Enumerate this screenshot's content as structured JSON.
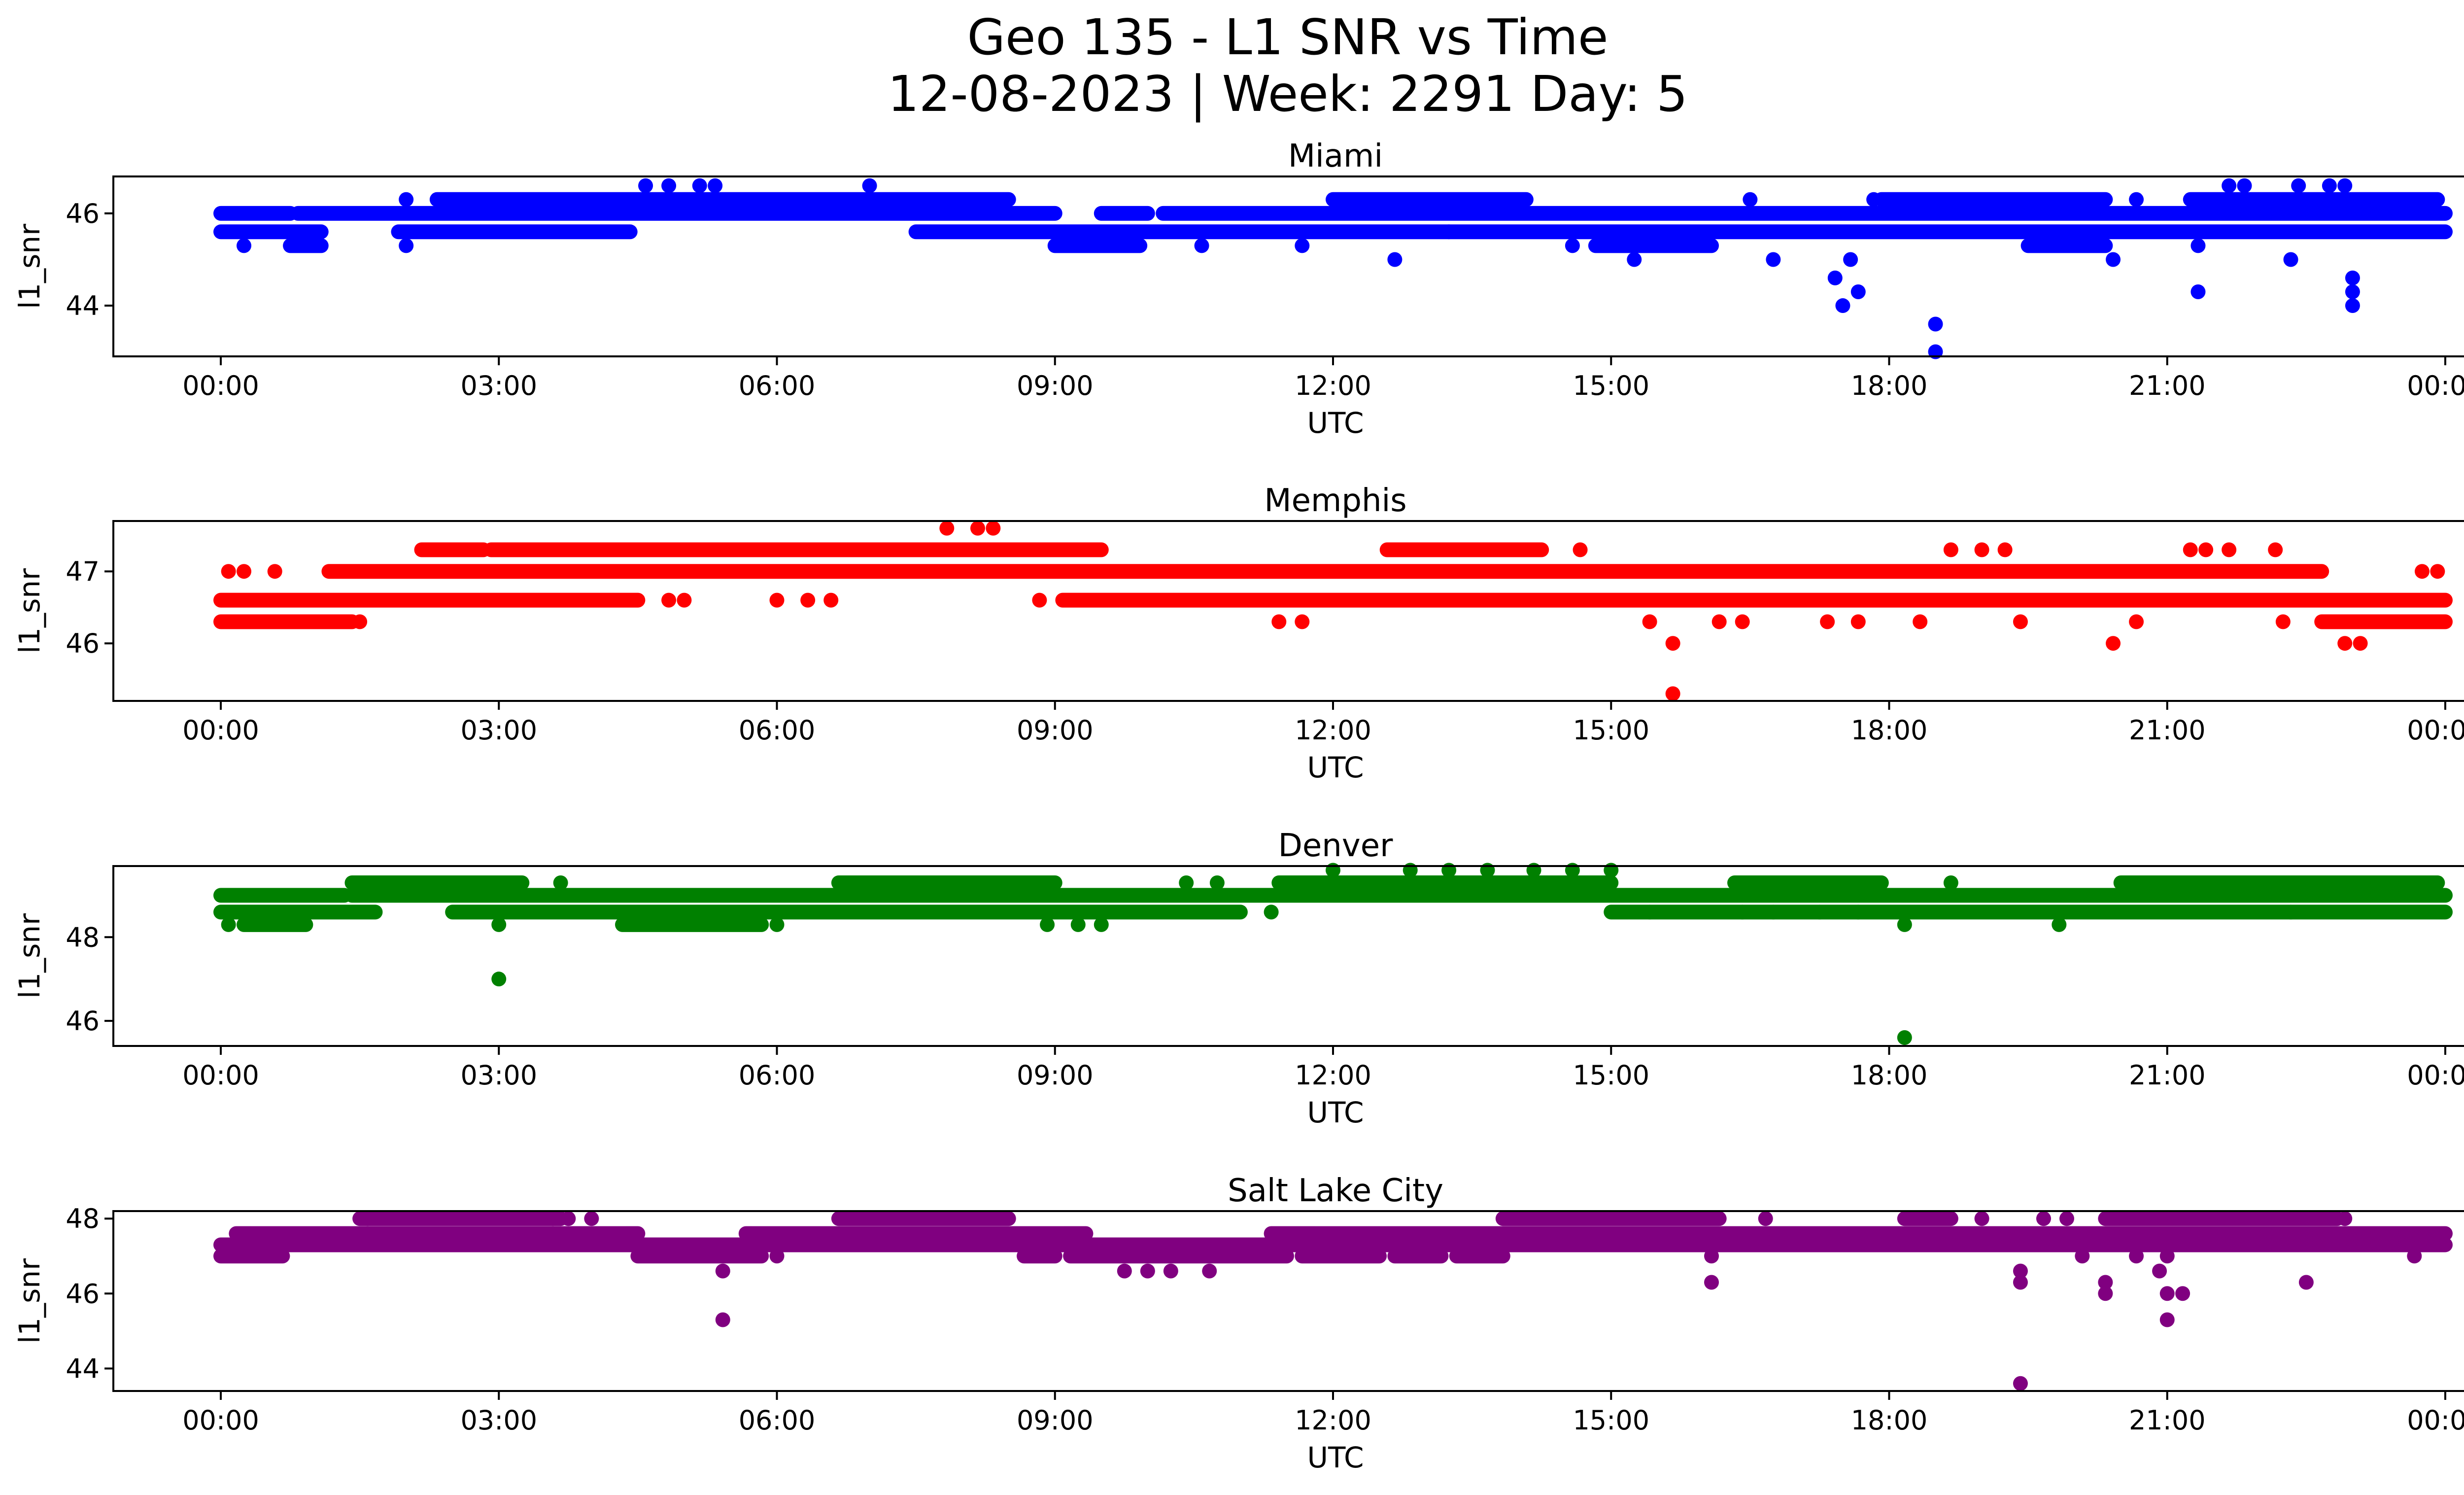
{
  "figure": {
    "title_line1": "Geo 135 - L1 SNR vs Time",
    "title_line2": "12-08-2023 | Week: 2291 Day: 5"
  },
  "chart_data": [
    {
      "type": "scatter",
      "title": "Miami",
      "xlabel": "UTC",
      "ylabel": "l1_snr",
      "color": "#0000ff",
      "xlim": [
        "00:00",
        "24:00"
      ],
      "xticks": [
        "00:00",
        "03:00",
        "06:00",
        "09:00",
        "12:00",
        "15:00",
        "18:00",
        "21:00",
        "00:00"
      ],
      "ylim": [
        42.9,
        46.8
      ],
      "yticks": [
        44,
        46
      ],
      "bands": [
        {
          "y": 45.6,
          "segments": [
            [
              "00:00",
              "01:05"
            ],
            [
              "01:55",
              "04:25"
            ],
            [
              "07:30",
              "24:00"
            ]
          ]
        },
        {
          "y": 46.0,
          "segments": [
            [
              "00:00",
              "00:45"
            ],
            [
              "00:50",
              "09:00"
            ],
            [
              "09:30",
              "10:00"
            ],
            [
              "10:10",
              "24:00"
            ]
          ]
        },
        {
          "y": 46.3,
          "segments": [
            [
              "02:20",
              "08:30"
            ],
            [
              "12:00",
              "14:05"
            ],
            [
              "17:55",
              "20:20"
            ],
            [
              "21:15",
              "23:55"
            ]
          ]
        },
        {
          "y": 45.3,
          "segments": [
            [
              "00:45",
              "01:05"
            ],
            [
              "09:00",
              "09:55"
            ],
            [
              "14:50",
              "16:05"
            ],
            [
              "19:30",
              "20:20"
            ]
          ]
        }
      ],
      "points": [
        {
          "x": "00:15",
          "y": 45.3
        },
        {
          "x": "02:00",
          "y": 45.3
        },
        {
          "x": "02:00",
          "y": 46.3
        },
        {
          "x": "04:35",
          "y": 46.6
        },
        {
          "x": "04:50",
          "y": 46.6
        },
        {
          "x": "05:10",
          "y": 46.6
        },
        {
          "x": "05:20",
          "y": 46.6
        },
        {
          "x": "07:00",
          "y": 46.6
        },
        {
          "x": "10:35",
          "y": 45.3
        },
        {
          "x": "11:40",
          "y": 45.3
        },
        {
          "x": "12:40",
          "y": 45.0
        },
        {
          "x": "13:15",
          "y": 45.6
        },
        {
          "x": "14:35",
          "y": 45.3
        },
        {
          "x": "15:15",
          "y": 45.0
        },
        {
          "x": "16:30",
          "y": 46.3
        },
        {
          "x": "16:45",
          "y": 45.0
        },
        {
          "x": "17:25",
          "y": 44.6
        },
        {
          "x": "17:30",
          "y": 44.0
        },
        {
          "x": "17:35",
          "y": 45.0
        },
        {
          "x": "17:40",
          "y": 44.3
        },
        {
          "x": "17:50",
          "y": 46.3
        },
        {
          "x": "18:30",
          "y": 43.6
        },
        {
          "x": "18:30",
          "y": 43.0
        },
        {
          "x": "20:25",
          "y": 45.0
        },
        {
          "x": "20:40",
          "y": 46.3
        },
        {
          "x": "21:20",
          "y": 44.3
        },
        {
          "x": "21:20",
          "y": 45.3
        },
        {
          "x": "21:40",
          "y": 46.6
        },
        {
          "x": "21:50",
          "y": 46.6
        },
        {
          "x": "22:20",
          "y": 45.0
        },
        {
          "x": "22:25",
          "y": 46.6
        },
        {
          "x": "22:45",
          "y": 46.6
        },
        {
          "x": "22:55",
          "y": 46.6
        },
        {
          "x": "23:00",
          "y": 44.0
        },
        {
          "x": "23:00",
          "y": 44.3
        },
        {
          "x": "23:00",
          "y": 44.6
        }
      ]
    },
    {
      "type": "scatter",
      "title": "Memphis",
      "xlabel": "UTC",
      "ylabel": "l1_snr",
      "color": "#ff0000",
      "xlim": [
        "00:00",
        "24:00"
      ],
      "xticks": [
        "00:00",
        "03:00",
        "06:00",
        "09:00",
        "12:00",
        "15:00",
        "18:00",
        "21:00",
        "00:00"
      ],
      "ylim": [
        45.2,
        47.7
      ],
      "yticks": [
        46,
        47
      ],
      "bands": [
        {
          "y": 46.6,
          "segments": [
            [
              "00:00",
              "04:30"
            ],
            [
              "09:05",
              "24:00"
            ]
          ]
        },
        {
          "y": 47.0,
          "segments": [
            [
              "01:10",
              "22:40"
            ]
          ]
        },
        {
          "y": 47.3,
          "segments": [
            [
              "02:10",
              "02:50"
            ],
            [
              "02:55",
              "09:30"
            ],
            [
              "12:35",
              "14:15"
            ]
          ]
        },
        {
          "y": 46.3,
          "segments": [
            [
              "00:00",
              "01:25"
            ],
            [
              "22:40",
              "24:00"
            ]
          ]
        }
      ],
      "points": [
        {
          "x": "00:05",
          "y": 47.0
        },
        {
          "x": "00:15",
          "y": 47.0
        },
        {
          "x": "00:35",
          "y": 47.0
        },
        {
          "x": "01:30",
          "y": 46.3
        },
        {
          "x": "04:50",
          "y": 46.6
        },
        {
          "x": "05:00",
          "y": 46.6
        },
        {
          "x": "06:00",
          "y": 46.6
        },
        {
          "x": "06:20",
          "y": 46.6
        },
        {
          "x": "06:35",
          "y": 46.6
        },
        {
          "x": "07:50",
          "y": 47.6
        },
        {
          "x": "08:10",
          "y": 47.6
        },
        {
          "x": "08:20",
          "y": 47.6
        },
        {
          "x": "08:50",
          "y": 46.6
        },
        {
          "x": "11:25",
          "y": 46.3
        },
        {
          "x": "11:40",
          "y": 46.3
        },
        {
          "x": "14:40",
          "y": 47.3
        },
        {
          "x": "15:25",
          "y": 46.3
        },
        {
          "x": "15:40",
          "y": 46.0
        },
        {
          "x": "15:40",
          "y": 45.3
        },
        {
          "x": "16:10",
          "y": 46.3
        },
        {
          "x": "16:25",
          "y": 46.3
        },
        {
          "x": "17:20",
          "y": 46.3
        },
        {
          "x": "17:40",
          "y": 46.3
        },
        {
          "x": "18:20",
          "y": 46.3
        },
        {
          "x": "18:40",
          "y": 47.3
        },
        {
          "x": "19:00",
          "y": 47.3
        },
        {
          "x": "19:15",
          "y": 47.3
        },
        {
          "x": "19:25",
          "y": 46.3
        },
        {
          "x": "20:25",
          "y": 46.0
        },
        {
          "x": "20:40",
          "y": 46.3
        },
        {
          "x": "21:15",
          "y": 47.3
        },
        {
          "x": "21:25",
          "y": 47.3
        },
        {
          "x": "21:40",
          "y": 47.3
        },
        {
          "x": "22:10",
          "y": 47.3
        },
        {
          "x": "22:15",
          "y": 46.3
        },
        {
          "x": "22:55",
          "y": 46.0
        },
        {
          "x": "23:05",
          "y": 46.0
        },
        {
          "x": "23:45",
          "y": 47.0
        },
        {
          "x": "23:55",
          "y": 47.0
        }
      ]
    },
    {
      "type": "scatter",
      "title": "Denver",
      "xlabel": "UTC",
      "ylabel": "l1_snr",
      "color": "#008000",
      "xlim": [
        "00:00",
        "24:00"
      ],
      "xticks": [
        "00:00",
        "03:00",
        "06:00",
        "09:00",
        "12:00",
        "15:00",
        "18:00",
        "21:00",
        "00:00"
      ],
      "ylim": [
        45.4,
        49.7
      ],
      "yticks": [
        46,
        48
      ],
      "bands": [
        {
          "y": 48.6,
          "segments": [
            [
              "00:00",
              "01:40"
            ],
            [
              "02:30",
              "11:00"
            ],
            [
              "15:00",
              "24:00"
            ]
          ]
        },
        {
          "y": 49.0,
          "segments": [
            [
              "00:00",
              "01:20"
            ],
            [
              "01:25",
              "24:00"
            ]
          ]
        },
        {
          "y": 49.3,
          "segments": [
            [
              "01:25",
              "03:15"
            ],
            [
              "06:40",
              "09:00"
            ],
            [
              "11:25",
              "15:00"
            ],
            [
              "16:20",
              "17:55"
            ],
            [
              "20:30",
              "23:55"
            ]
          ]
        },
        {
          "y": 48.3,
          "segments": [
            [
              "00:15",
              "00:55"
            ],
            [
              "04:20",
              "05:50"
            ]
          ]
        }
      ],
      "points": [
        {
          "x": "00:05",
          "y": 48.3
        },
        {
          "x": "03:00",
          "y": 47.0
        },
        {
          "x": "03:00",
          "y": 48.3
        },
        {
          "x": "03:40",
          "y": 49.3
        },
        {
          "x": "06:00",
          "y": 48.3
        },
        {
          "x": "08:55",
          "y": 48.3
        },
        {
          "x": "09:15",
          "y": 48.3
        },
        {
          "x": "09:30",
          "y": 48.3
        },
        {
          "x": "10:25",
          "y": 49.3
        },
        {
          "x": "10:45",
          "y": 49.3
        },
        {
          "x": "11:20",
          "y": 48.6
        },
        {
          "x": "12:00",
          "y": 49.6
        },
        {
          "x": "12:50",
          "y": 49.6
        },
        {
          "x": "13:15",
          "y": 49.6
        },
        {
          "x": "13:40",
          "y": 49.6
        },
        {
          "x": "14:10",
          "y": 49.6
        },
        {
          "x": "14:35",
          "y": 49.6
        },
        {
          "x": "15:00",
          "y": 49.6
        },
        {
          "x": "15:25",
          "y": 48.6
        },
        {
          "x": "16:25",
          "y": 48.6
        },
        {
          "x": "16:45",
          "y": 48.6
        },
        {
          "x": "17:15",
          "y": 48.6
        },
        {
          "x": "17:40",
          "y": 48.6
        },
        {
          "x": "18:10",
          "y": 48.3
        },
        {
          "x": "18:10",
          "y": 45.6
        },
        {
          "x": "18:40",
          "y": 49.3
        },
        {
          "x": "19:50",
          "y": 48.3
        },
        {
          "x": "22:20",
          "y": 48.6
        }
      ]
    },
    {
      "type": "scatter",
      "title": "Salt Lake City",
      "xlabel": "UTC",
      "ylabel": "l1_snr",
      "color": "#800080",
      "xlim": [
        "00:00",
        "24:00"
      ],
      "xticks": [
        "00:00",
        "03:00",
        "06:00",
        "09:00",
        "12:00",
        "15:00",
        "18:00",
        "21:00",
        "00:00"
      ],
      "ylim": [
        43.4,
        48.2
      ],
      "yticks": [
        44,
        46,
        48
      ],
      "bands": [
        {
          "y": 47.0,
          "segments": [
            [
              "00:00",
              "00:40"
            ],
            [
              "04:30",
              "05:50"
            ],
            [
              "08:40",
              "09:00"
            ],
            [
              "09:10",
              "11:30"
            ],
            [
              "11:40",
              "12:30"
            ],
            [
              "12:40",
              "13:10"
            ],
            [
              "13:20",
              "13:50"
            ]
          ]
        },
        {
          "y": 47.3,
          "segments": [
            [
              "00:00",
              "24:00"
            ]
          ]
        },
        {
          "y": 47.6,
          "segments": [
            [
              "00:10",
              "04:30"
            ],
            [
              "05:40",
              "09:20"
            ],
            [
              "11:20",
              "24:00"
            ]
          ]
        },
        {
          "y": 48.0,
          "segments": [
            [
              "01:30",
              "03:40"
            ],
            [
              "06:40",
              "08:30"
            ],
            [
              "13:50",
              "16:10"
            ],
            [
              "18:10",
              "18:40"
            ],
            [
              "20:20",
              "22:50"
            ]
          ]
        }
      ],
      "points": [
        {
          "x": "01:35",
          "y": 48.0
        },
        {
          "x": "02:40",
          "y": 47.3
        },
        {
          "x": "03:35",
          "y": 48.0
        },
        {
          "x": "03:45",
          "y": 48.0
        },
        {
          "x": "04:00",
          "y": 48.0
        },
        {
          "x": "05:25",
          "y": 46.6
        },
        {
          "x": "05:25",
          "y": 45.3
        },
        {
          "x": "06:00",
          "y": 47.0
        },
        {
          "x": "07:10",
          "y": 47.3
        },
        {
          "x": "09:45",
          "y": 46.6
        },
        {
          "x": "10:00",
          "y": 46.6
        },
        {
          "x": "10:15",
          "y": 46.6
        },
        {
          "x": "10:40",
          "y": 46.6
        },
        {
          "x": "16:05",
          "y": 46.3
        },
        {
          "x": "16:05",
          "y": 47.0
        },
        {
          "x": "16:40",
          "y": 48.0
        },
        {
          "x": "19:00",
          "y": 48.0
        },
        {
          "x": "19:25",
          "y": 46.6
        },
        {
          "x": "19:25",
          "y": 46.3
        },
        {
          "x": "19:25",
          "y": 43.6
        },
        {
          "x": "19:40",
          "y": 48.0
        },
        {
          "x": "19:55",
          "y": 48.0
        },
        {
          "x": "20:05",
          "y": 47.0
        },
        {
          "x": "20:20",
          "y": 46.0
        },
        {
          "x": "20:20",
          "y": 46.3
        },
        {
          "x": "20:40",
          "y": 47.0
        },
        {
          "x": "20:55",
          "y": 46.6
        },
        {
          "x": "21:00",
          "y": 46.0
        },
        {
          "x": "21:00",
          "y": 45.3
        },
        {
          "x": "21:00",
          "y": 47.0
        },
        {
          "x": "21:10",
          "y": 46.0
        },
        {
          "x": "22:30",
          "y": 46.3
        },
        {
          "x": "22:55",
          "y": 48.0
        },
        {
          "x": "23:40",
          "y": 47.0
        }
      ]
    }
  ]
}
